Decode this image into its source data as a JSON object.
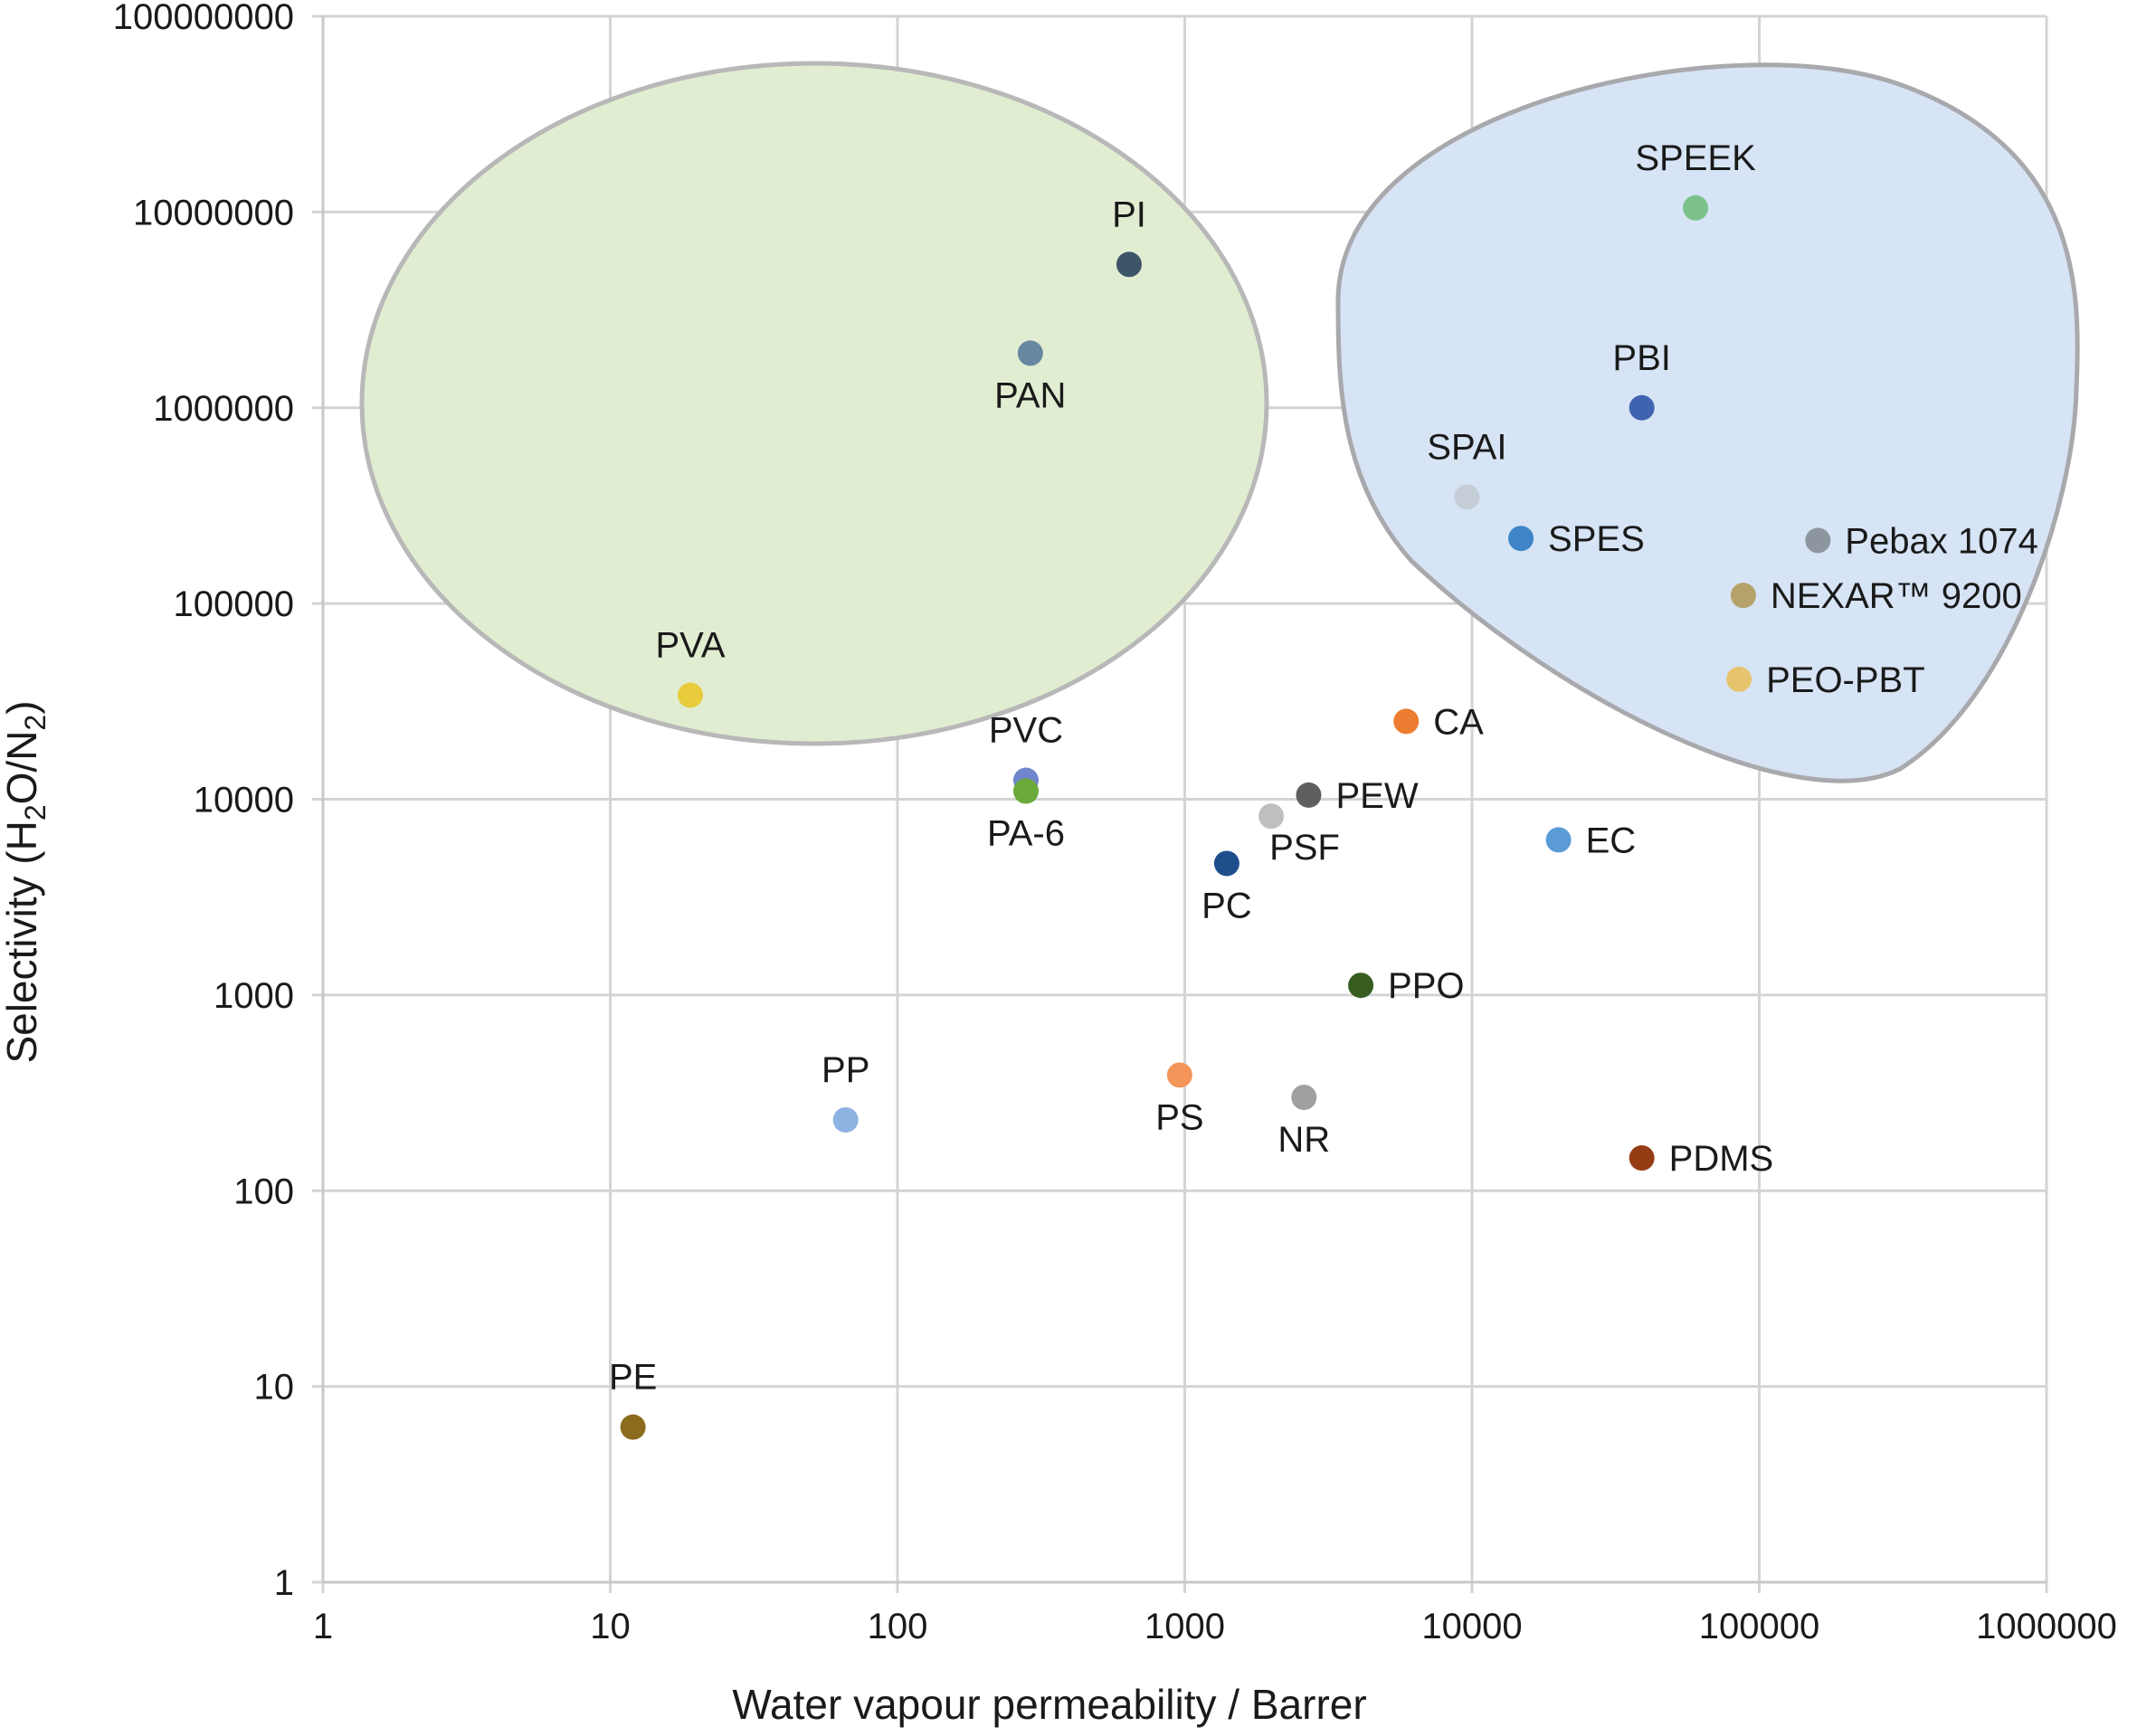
{
  "chart_data": {
    "type": "scatter",
    "title": "",
    "xlabel": "Water vapour permeability / Barrer",
    "ylabel": "Selectivity (H2O/N2)",
    "xscale": "log",
    "yscale": "log",
    "xlim": [
      1,
      1000000
    ],
    "ylim": [
      1,
      100000000
    ],
    "grid": true,
    "x_ticks": [
      "1",
      "10",
      "100",
      "1000",
      "10000",
      "100000",
      "1000000"
    ],
    "y_ticks": [
      "1",
      "10",
      "100",
      "1000",
      "10000",
      "100000",
      "1000000",
      "10000000",
      "100000000"
    ],
    "regions": [
      {
        "name": "green-ellipse",
        "color": "#e1edd1",
        "stroke": "#b8b8b8"
      },
      {
        "name": "blue-blob",
        "color": "#d6e4f5",
        "stroke": "#a9a9ad"
      }
    ],
    "points": [
      {
        "label": "PI",
        "x": 640,
        "y": 5400000,
        "color": "#3e5468",
        "label_pos": "top"
      },
      {
        "label": "PAN",
        "x": 290,
        "y": 1900000,
        "color": "#6888a2",
        "label_pos": "bottom"
      },
      {
        "label": "PVA",
        "x": 19,
        "y": 34000,
        "color": "#e8cc3c",
        "label_pos": "top"
      },
      {
        "label": "PVC",
        "x": 280,
        "y": 12500,
        "color": "#6f86cc",
        "label_pos": "top"
      },
      {
        "label": "PA-6",
        "x": 280,
        "y": 11000,
        "color": "#6aaa3a",
        "label_pos": "bottom"
      },
      {
        "label": "SPEEK",
        "x": 60000,
        "y": 10500000,
        "color": "#7dc28c",
        "label_pos": "top"
      },
      {
        "label": "PBI",
        "x": 39000,
        "y": 1000000,
        "color": "#3f63b0",
        "label_pos": "top"
      },
      {
        "label": "SPAI",
        "x": 9600,
        "y": 350000,
        "color": "#c5cdd6",
        "label_pos": "top"
      },
      {
        "label": "SPES",
        "x": 14800,
        "y": 215000,
        "color": "#3d85c6",
        "label_pos": "right"
      },
      {
        "label": "Pebax 1074",
        "x": 160000,
        "y": 210000,
        "color": "#8d969e",
        "label_pos": "right"
      },
      {
        "label": "NEXAR™ 9200",
        "x": 88000,
        "y": 110000,
        "color": "#b5a26a",
        "label_pos": "right"
      },
      {
        "label": "PEO-PBT",
        "x": 85000,
        "y": 41000,
        "color": "#e6c46e",
        "label_pos": "right"
      },
      {
        "label": "CA",
        "x": 5900,
        "y": 25000,
        "color": "#ed7d31",
        "label_pos": "right"
      },
      {
        "label": "PEW",
        "x": 2700,
        "y": 10500,
        "color": "#5f5f5f",
        "label_pos": "right"
      },
      {
        "label": "PSF",
        "x": 2000,
        "y": 8200,
        "color": "#bfbfbf",
        "label_pos": "bottom-right"
      },
      {
        "label": "PC",
        "x": 1400,
        "y": 4700,
        "color": "#1f4e8c",
        "label_pos": "bottom"
      },
      {
        "label": "EC",
        "x": 20000,
        "y": 6200,
        "color": "#5b9bd5",
        "label_pos": "right"
      },
      {
        "label": "PPO",
        "x": 4100,
        "y": 1120,
        "color": "#375e1f",
        "label_pos": "right"
      },
      {
        "label": "PS",
        "x": 960,
        "y": 390,
        "color": "#f4955a",
        "label_pos": "bottom"
      },
      {
        "label": "NR",
        "x": 2600,
        "y": 300,
        "color": "#a0a0a0",
        "label_pos": "bottom"
      },
      {
        "label": "PP",
        "x": 66,
        "y": 230,
        "color": "#8db3e2",
        "label_pos": "top"
      },
      {
        "label": "PDMS",
        "x": 39000,
        "y": 147,
        "color": "#963c14",
        "label_pos": "right"
      },
      {
        "label": "PE",
        "x": 12,
        "y": 6.2,
        "color": "#8b6c1e",
        "label_pos": "top"
      }
    ]
  }
}
